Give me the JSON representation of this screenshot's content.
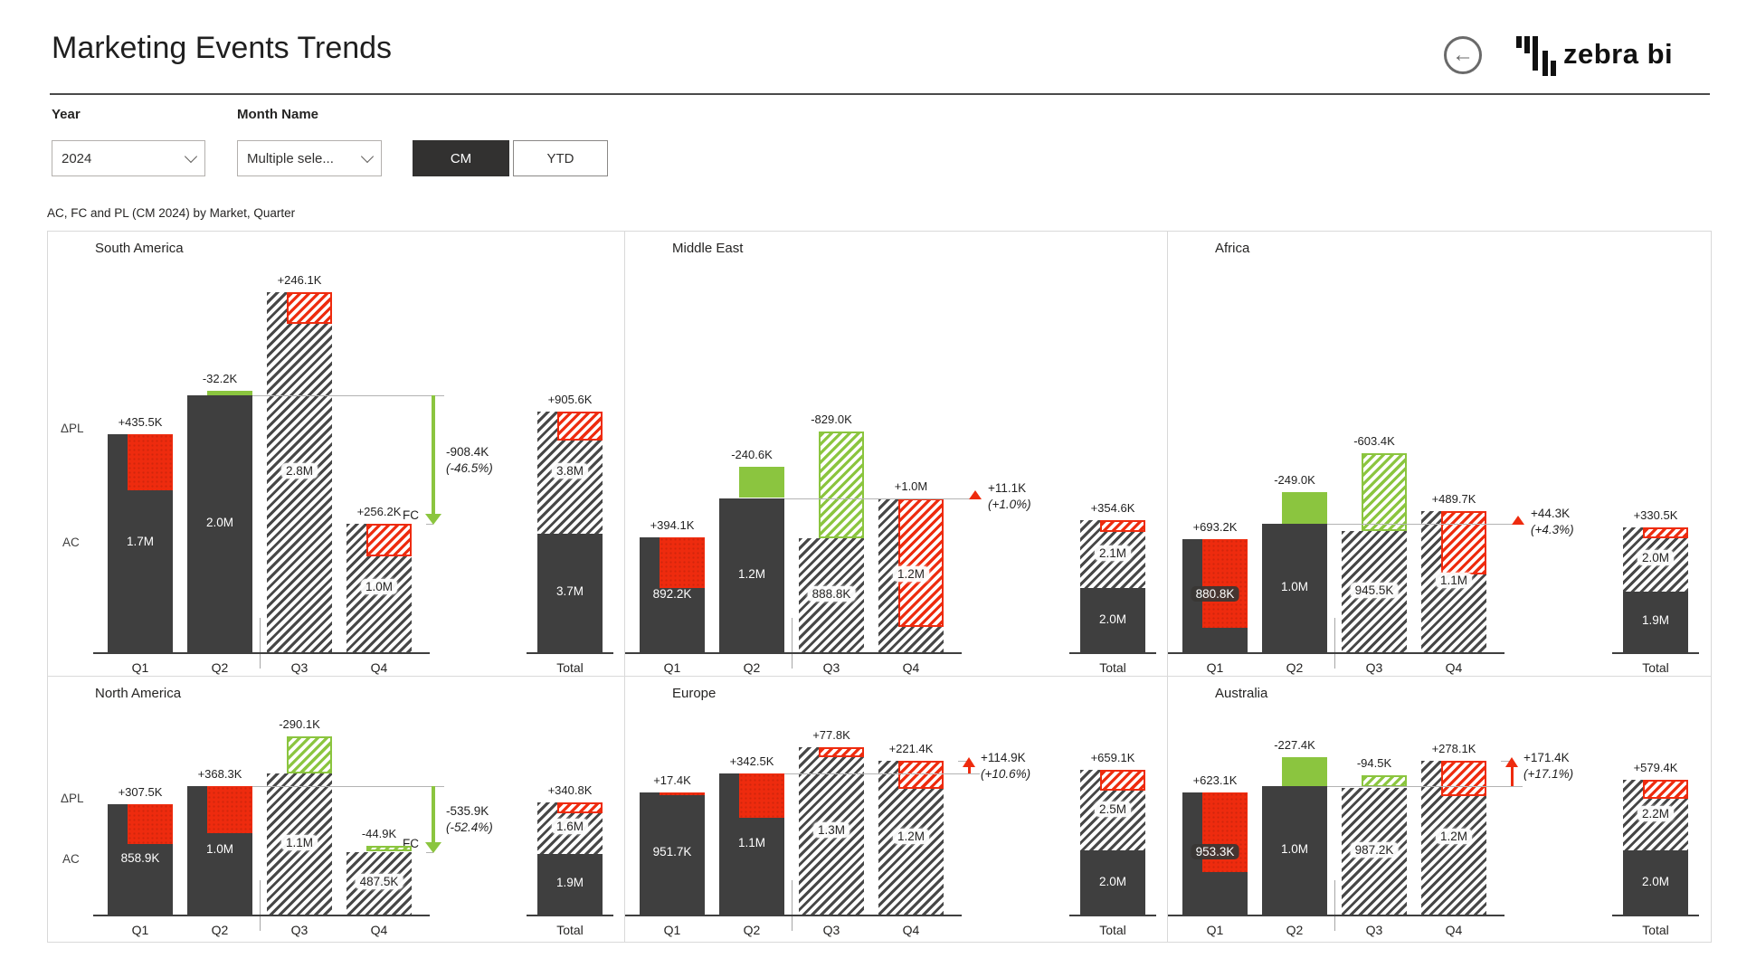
{
  "header": {
    "title": "Marketing Events Trends",
    "brand": "zebra bi",
    "back_icon": "back-arrow"
  },
  "filters": {
    "year_label": "Year",
    "year_value": "2024",
    "month_label": "Month Name",
    "month_value": "Multiple sele...",
    "cm_label": "CM",
    "ytd_label": "YTD",
    "selected_toggle": "CM"
  },
  "subtitle": "AC, FC and PL (CM 2024) by Market, Quarter",
  "colors": {
    "ac_bar": "#3f3f3f",
    "red": "#ee2b0e",
    "green": "#8bc53f",
    "hatch": "#474747",
    "connector": "#b3b3b3",
    "axis": "#3f3f3f",
    "panel_border": "#d9d9d9",
    "text": "#252423"
  },
  "chart_data": {
    "type": "bar",
    "title": "AC, FC and PL (CM 2024) by Market, Quarter",
    "categories": [
      "Q1",
      "Q2",
      "Q3",
      "Q4"
    ],
    "total_label": "Total",
    "axis_labels": {
      "variance": "ΔPL",
      "actual": "AC"
    },
    "legend": {
      "AC": "actual solid dark",
      "FC": "forecast hatched",
      "positive_variance": "red",
      "negative_variance": "green"
    },
    "panels": [
      {
        "market": "South America",
        "row": 0,
        "col": 0,
        "quarters": [
          {
            "q": "Q1",
            "series": "AC",
            "value": 1700000,
            "value_label": "1.7M",
            "variance": 435500,
            "variance_label": "+435.5K",
            "label_style": "plain"
          },
          {
            "q": "Q2",
            "series": "AC",
            "value": 2000000,
            "value_label": "2.0M",
            "variance": -32200,
            "variance_label": "-32.2K",
            "label_style": "plain"
          },
          {
            "q": "Q3",
            "series": "FC",
            "value": 2800000,
            "value_label": "2.8M",
            "variance": 246100,
            "variance_label": "+246.1K",
            "label_style": "chip-light"
          },
          {
            "q": "Q4",
            "series": "FC",
            "value": 1000000,
            "value_label": "1.0M",
            "variance": 256200,
            "variance_label": "+256.2K",
            "label_style": "chip-light"
          }
        ],
        "total": {
          "ac": 3700000,
          "ac_label": "3.7M",
          "fc": 3800000,
          "fc_label": "3.8M",
          "variance": 905600,
          "variance_label": "+905.6K"
        },
        "trend": {
          "style": "arrow-down",
          "color": "green",
          "delta_label": "-908.4K",
          "delta_pct": "(-46.5%)",
          "marker": "FC"
        }
      },
      {
        "market": "Middle East",
        "row": 0,
        "col": 1,
        "quarters": [
          {
            "q": "Q1",
            "series": "AC",
            "value": 892200,
            "value_label": "892.2K",
            "variance": 394100,
            "variance_label": "+394.1K",
            "label_style": "plain"
          },
          {
            "q": "Q2",
            "series": "AC",
            "value": 1200000,
            "value_label": "1.2M",
            "variance": -240600,
            "variance_label": "-240.6K",
            "label_style": "plain"
          },
          {
            "q": "Q3",
            "series": "FC",
            "value": 888800,
            "value_label": "888.8K",
            "variance": -829000,
            "variance_label": "-829.0K",
            "label_style": "chip-light"
          },
          {
            "q": "Q4",
            "series": "FC",
            "value": 1200000,
            "value_label": "1.2M",
            "variance": 1000000,
            "variance_label": "+1.0M",
            "label_style": "chip-light"
          }
        ],
        "total": {
          "ac": 2000000,
          "ac_label": "2.0M",
          "fc": 2100000,
          "fc_label": "2.1M",
          "variance": 354600,
          "variance_label": "+354.6K"
        },
        "trend": {
          "style": "triangle-up",
          "color": "red",
          "delta_label": "+11.1K",
          "delta_pct": "(+1.0%)"
        }
      },
      {
        "market": "Africa",
        "row": 0,
        "col": 2,
        "quarters": [
          {
            "q": "Q1",
            "series": "AC",
            "value": 880800,
            "value_label": "880.8K",
            "variance": 693200,
            "variance_label": "+693.2K",
            "label_style": "chip-dark"
          },
          {
            "q": "Q2",
            "series": "AC",
            "value": 1000000,
            "value_label": "1.0M",
            "variance": -249000,
            "variance_label": "-249.0K",
            "label_style": "plain"
          },
          {
            "q": "Q3",
            "series": "FC",
            "value": 945500,
            "value_label": "945.5K",
            "variance": -603400,
            "variance_label": "-603.4K",
            "label_style": "chip-light"
          },
          {
            "q": "Q4",
            "series": "FC",
            "value": 1100000,
            "value_label": "1.1M",
            "variance": 489700,
            "variance_label": "+489.7K",
            "label_style": "chip-light"
          }
        ],
        "total": {
          "ac": 1900000,
          "ac_label": "1.9M",
          "fc": 2000000,
          "fc_label": "2.0M",
          "variance": 330500,
          "variance_label": "+330.5K"
        },
        "trend": {
          "style": "triangle-up",
          "color": "red",
          "delta_label": "+44.3K",
          "delta_pct": "(+4.3%)"
        }
      },
      {
        "market": "North America",
        "row": 1,
        "col": 0,
        "quarters": [
          {
            "q": "Q1",
            "series": "AC",
            "value": 858900,
            "value_label": "858.9K",
            "variance": 307500,
            "variance_label": "+307.5K",
            "label_style": "plain"
          },
          {
            "q": "Q2",
            "series": "AC",
            "value": 1000000,
            "value_label": "1.0M",
            "variance": 368300,
            "variance_label": "+368.3K",
            "label_style": "plain"
          },
          {
            "q": "Q3",
            "series": "FC",
            "value": 1100000,
            "value_label": "1.1M",
            "variance": -290100,
            "variance_label": "-290.1K",
            "label_style": "chip-light"
          },
          {
            "q": "Q4",
            "series": "FC",
            "value": 487500,
            "value_label": "487.5K",
            "variance": -44900,
            "variance_label": "-44.9K",
            "label_style": "chip-light"
          }
        ],
        "total": {
          "ac": 1900000,
          "ac_label": "1.9M",
          "fc": 1600000,
          "fc_label": "1.6M",
          "variance": 340800,
          "variance_label": "+340.8K"
        },
        "trend": {
          "style": "arrow-down",
          "color": "green",
          "delta_label": "-535.9K",
          "delta_pct": "(-52.4%)",
          "marker": "FC"
        }
      },
      {
        "market": "Europe",
        "row": 1,
        "col": 1,
        "quarters": [
          {
            "q": "Q1",
            "series": "AC",
            "value": 951700,
            "value_label": "951.7K",
            "variance": 17400,
            "variance_label": "+17.4K",
            "label_style": "plain"
          },
          {
            "q": "Q2",
            "series": "AC",
            "value": 1100000,
            "value_label": "1.1M",
            "variance": 342500,
            "variance_label": "+342.5K",
            "label_style": "plain"
          },
          {
            "q": "Q3",
            "series": "FC",
            "value": 1300000,
            "value_label": "1.3M",
            "variance": 77800,
            "variance_label": "+77.8K",
            "label_style": "chip-light"
          },
          {
            "q": "Q4",
            "series": "FC",
            "value": 1200000,
            "value_label": "1.2M",
            "variance": 221400,
            "variance_label": "+221.4K",
            "label_style": "chip-light"
          }
        ],
        "total": {
          "ac": 2000000,
          "ac_label": "2.0M",
          "fc": 2500000,
          "fc_label": "2.5M",
          "variance": 659100,
          "variance_label": "+659.1K"
        },
        "trend": {
          "style": "arrow-up",
          "color": "red",
          "delta_label": "+114.9K",
          "delta_pct": "(+10.6%)"
        }
      },
      {
        "market": "Australia",
        "row": 1,
        "col": 2,
        "quarters": [
          {
            "q": "Q1",
            "series": "AC",
            "value": 953300,
            "value_label": "953.3K",
            "variance": 623100,
            "variance_label": "+623.1K",
            "label_style": "chip-dark"
          },
          {
            "q": "Q2",
            "series": "AC",
            "value": 1000000,
            "value_label": "1.0M",
            "variance": -227400,
            "variance_label": "-227.4K",
            "label_style": "plain"
          },
          {
            "q": "Q3",
            "series": "FC",
            "value": 987200,
            "value_label": "987.2K",
            "variance": -94500,
            "variance_label": "-94.5K",
            "label_style": "chip-light"
          },
          {
            "q": "Q4",
            "series": "FC",
            "value": 1200000,
            "value_label": "1.2M",
            "variance": 278100,
            "variance_label": "+278.1K",
            "label_style": "chip-light"
          }
        ],
        "total": {
          "ac": 2000000,
          "ac_label": "2.0M",
          "fc": 2200000,
          "fc_label": "2.2M",
          "variance": 579400,
          "variance_label": "+579.4K"
        },
        "trend": {
          "style": "arrow-up",
          "color": "red",
          "delta_label": "+171.4K",
          "delta_pct": "(+17.1%)"
        }
      }
    ]
  }
}
